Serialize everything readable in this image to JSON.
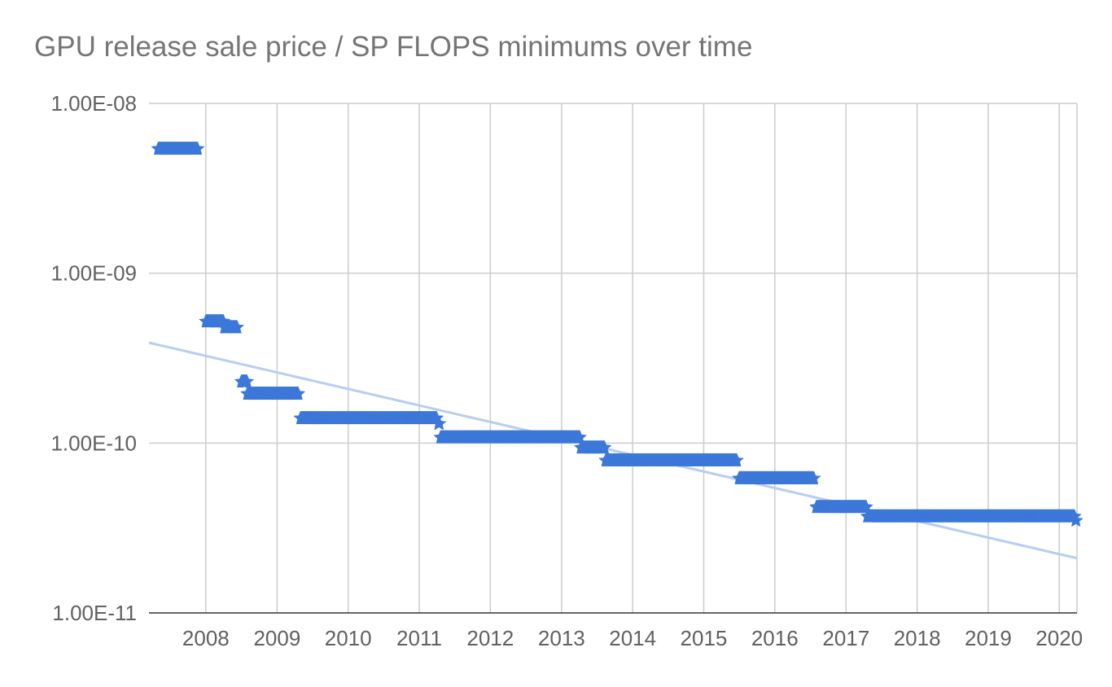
{
  "chart_data": {
    "type": "scatter",
    "title": "GPU release sale price / SP FLOPS minimums over time",
    "xlabel": "",
    "ylabel": "",
    "xlim": [
      "2007-03-15",
      "2020-04-01"
    ],
    "ylim": [
      1e-11,
      1e-08
    ],
    "y_scale": "log",
    "grid": true,
    "legend": "none",
    "x_ticks": [
      "2008",
      "2009",
      "2010",
      "2011",
      "2012",
      "2013",
      "2014",
      "2015",
      "2016",
      "2017",
      "2018",
      "2019",
      "2020"
    ],
    "y_ticks": [
      {
        "value": 1e-08,
        "label": "1.00E-08"
      },
      {
        "value": 1e-09,
        "label": "1.00E-09"
      },
      {
        "value": 1e-10,
        "label": "1.00E-10"
      },
      {
        "value": 1e-11,
        "label": "1.00E-11"
      }
    ],
    "marker": "star",
    "colors": {
      "points": "#3c78d8",
      "trendline": "#b7cdf3",
      "grid": "#cccccc",
      "axis": "#999999"
    },
    "series": [
      {
        "segments": [
          {
            "start": "2007-05-01",
            "end": "2007-11-20",
            "value": 5.4e-09
          },
          {
            "start": "2008-01-01",
            "end": "2008-04-01",
            "value": 5.2e-10
          },
          {
            "start": "2008-04-05",
            "end": "2008-06-10",
            "value": 4.8e-10
          },
          {
            "start": "2008-07-01",
            "end": "2008-07-31",
            "value": 2.3e-10
          },
          {
            "start": "2008-08-01",
            "end": "2009-04-20",
            "value": 1.95e-10
          },
          {
            "start": "2009-05-01",
            "end": "2011-04-01",
            "value": 1.4e-10
          },
          {
            "start": "2011-04-10",
            "end": "2011-04-15",
            "value": 1.3e-10
          },
          {
            "start": "2011-04-20",
            "end": "2013-04-05",
            "value": 1.08e-10
          },
          {
            "start": "2013-04-10",
            "end": "2013-08-10",
            "value": 9.4e-11
          },
          {
            "start": "2013-08-15",
            "end": "2015-06-20",
            "value": 7.9e-11
          },
          {
            "start": "2015-07-01",
            "end": "2016-07-20",
            "value": 6.2e-11
          },
          {
            "start": "2016-08-01",
            "end": "2017-04-15",
            "value": 4.2e-11
          },
          {
            "start": "2017-04-20",
            "end": "2020-03-20",
            "value": 3.7e-11
          },
          {
            "start": "2020-03-25",
            "end": "2020-03-28",
            "value": 3.5e-11
          }
        ]
      }
    ],
    "trendline": [
      {
        "x": "2007-03-15",
        "y": 3.9e-10
      },
      {
        "x": "2020-04-01",
        "y": 2.1e-11
      }
    ]
  }
}
